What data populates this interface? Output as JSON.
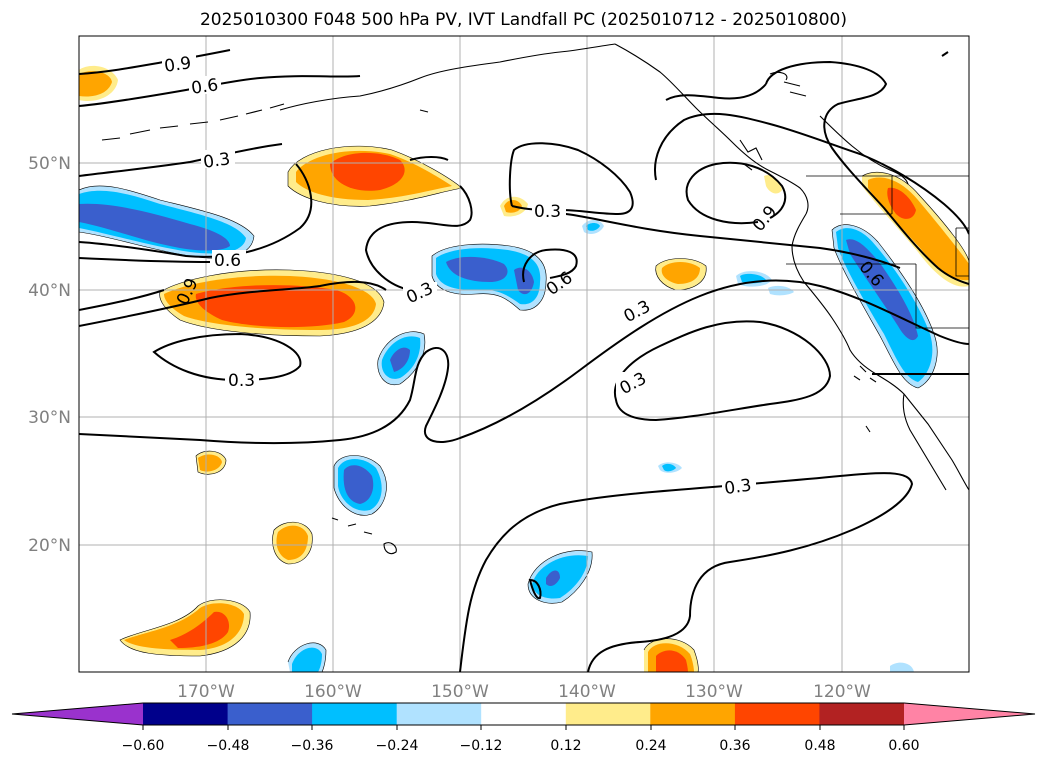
{
  "figure": {
    "title": "2025010300 F048 500 hPa PV, IVT Landfall PC (2025010712 - 2025010800)"
  },
  "map": {
    "lon_labels": [
      "170°W",
      "160°W",
      "150°W",
      "140°W",
      "130°W",
      "120°W"
    ],
    "lat_labels": [
      "50°N",
      "40°N",
      "30°N",
      "20°N"
    ],
    "contour_labels": [
      "0.9",
      "0.6",
      "0.3",
      "0.6",
      "0.9",
      "0.3",
      "0.3",
      "0.3",
      "0.6",
      "0.3",
      "0.3",
      "0.9",
      "0.6",
      "0.3"
    ]
  },
  "colorbar": {
    "tick_labels": [
      "−0.60",
      "−0.48",
      "−0.36",
      "−0.24",
      "−0.12",
      "0.12",
      "0.24",
      "0.36",
      "0.48",
      "0.60"
    ],
    "colors": [
      "#9a32cd",
      "#00008b",
      "#3a5fcd",
      "#00bfff",
      "#b0e2ff",
      "#ffffff",
      "#ffec8b",
      "#ffa500",
      "#ff4500",
      "#b22222",
      "#ff83a5"
    ]
  }
}
